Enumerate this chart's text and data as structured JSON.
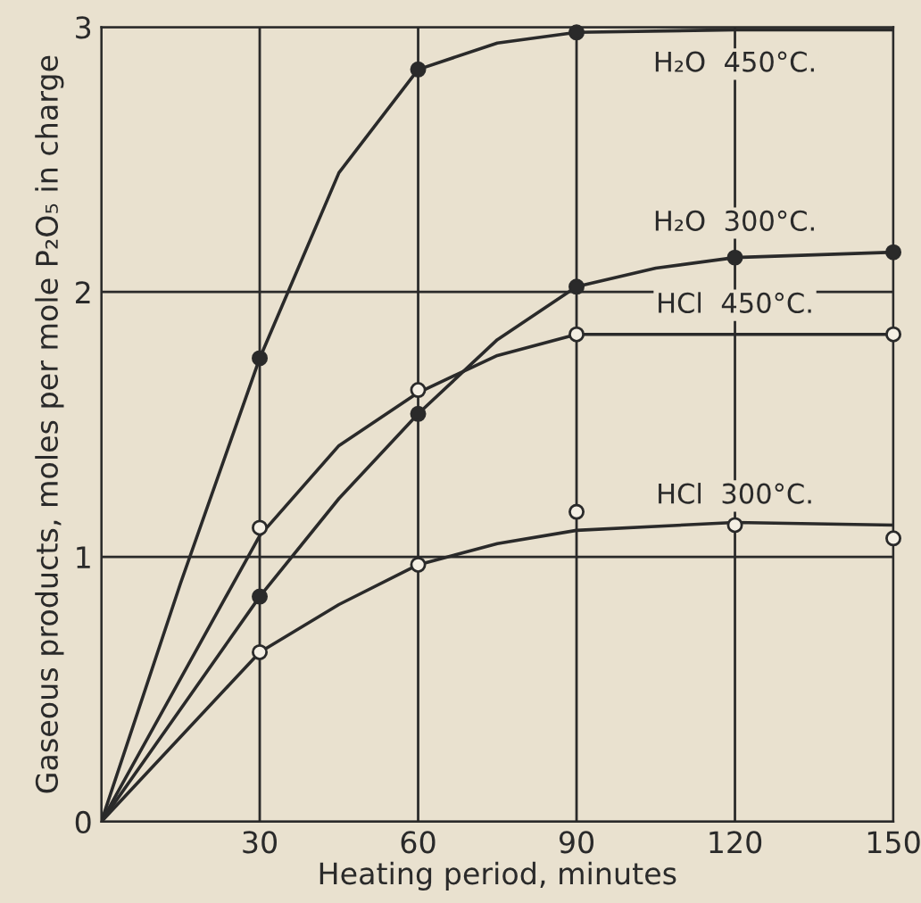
{
  "chart_data": {
    "type": "line",
    "xlabel": "Heating period, minutes",
    "ylabel": "Gaseous products, moles per mole P₂O₅ in charge",
    "xlim": [
      0,
      150
    ],
    "xticks": [
      {
        "value": 0,
        "label": null
      },
      30,
      60,
      90,
      120,
      150
    ],
    "ylim": [
      0,
      3
    ],
    "yticks": [
      0,
      1,
      2,
      3
    ],
    "grid": true,
    "marker": "none",
    "line_style": "solid",
    "series": [
      {
        "name": "H₂O  450°C.",
        "color": "#2a2a2a",
        "x": [
          0,
          15,
          30,
          45,
          60,
          75,
          90,
          120,
          150
        ],
        "values": [
          0,
          0.9,
          1.75,
          2.45,
          2.84,
          2.94,
          2.98,
          2.99,
          2.99
        ]
      },
      {
        "name": "H₂O  300°C.",
        "color": "#2a2a2a",
        "x": [
          0,
          30,
          45,
          60,
          75,
          90,
          105,
          120,
          150
        ],
        "values": [
          0,
          0.85,
          1.22,
          1.54,
          1.82,
          2.02,
          2.09,
          2.13,
          2.15
        ]
      },
      {
        "name": "HCl  450°C.",
        "color": "#2a2a2a",
        "x": [
          0,
          30,
          45,
          60,
          75,
          90,
          120,
          150
        ],
        "values": [
          0,
          1.08,
          1.42,
          1.62,
          1.76,
          1.84,
          1.84,
          1.84
        ]
      },
      {
        "name": "HCl  300°C.",
        "color": "#2a2a2a",
        "x": [
          0,
          30,
          45,
          60,
          75,
          90,
          120,
          150
        ],
        "values": [
          0,
          0.64,
          0.82,
          0.97,
          1.05,
          1.1,
          1.13,
          1.12
        ]
      },
      {
        "type": "scatter",
        "marker": "circle",
        "color": "#2a2a2a",
        "x": [
          30,
          60,
          90
        ],
        "values": [
          1.75,
          2.84,
          2.98
        ]
      },
      {
        "type": "scatter",
        "marker": "circle",
        "color": "#2a2a2a",
        "x": [
          30,
          60,
          90,
          120,
          150
        ],
        "values": [
          0.85,
          1.54,
          2.02,
          2.13,
          2.15
        ]
      },
      {
        "type": "scatter",
        "marker": "circle",
        "color": "#f4efe4",
        "x": [
          30,
          60,
          90,
          150
        ],
        "values": [
          1.11,
          1.63,
          1.84,
          1.84
        ]
      },
      {
        "type": "scatter",
        "marker": "circle",
        "color": "#f4efe4",
        "x": [
          30,
          60,
          90,
          120,
          150
        ],
        "values": [
          0.64,
          0.97,
          1.17,
          1.12,
          1.07
        ]
      }
    ]
  }
}
